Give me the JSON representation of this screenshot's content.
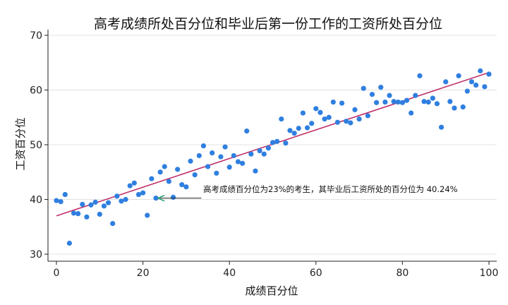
{
  "chart_data": {
    "type": "scatter",
    "title": "高考成绩所处百分位和毕业后第一份工作的工资所处百分位",
    "xlabel": "成绩百分位",
    "ylabel": "工资百分位",
    "xlim": [
      0,
      100
    ],
    "ylim": [
      30,
      70
    ],
    "xticks": [
      0,
      20,
      40,
      60,
      80,
      100
    ],
    "yticks": [
      30,
      40,
      50,
      60,
      70
    ],
    "grid": "horizontal",
    "point_color": "#2f7fe0",
    "line_color": "#c0306a",
    "points": [
      [
        0,
        39.8
      ],
      [
        1,
        39.6
      ],
      [
        2,
        40.9
      ],
      [
        3,
        32.0
      ],
      [
        4,
        37.5
      ],
      [
        5,
        37.4
      ],
      [
        6,
        39.1
      ],
      [
        7,
        36.8
      ],
      [
        8,
        39.0
      ],
      [
        9,
        39.5
      ],
      [
        10,
        37.3
      ],
      [
        11,
        38.8
      ],
      [
        12,
        39.4
      ],
      [
        13,
        35.6
      ],
      [
        14,
        40.6
      ],
      [
        15,
        39.7
      ],
      [
        16,
        40.0
      ],
      [
        17,
        42.5
      ],
      [
        18,
        43.0
      ],
      [
        19,
        40.9
      ],
      [
        20,
        41.2
      ],
      [
        21,
        37.1
      ],
      [
        22,
        43.8
      ],
      [
        23,
        40.24
      ],
      [
        24,
        45.0
      ],
      [
        25,
        46.0
      ],
      [
        26,
        43.3
      ],
      [
        27,
        40.4
      ],
      [
        28,
        45.5
      ],
      [
        29,
        42.7
      ],
      [
        30,
        42.3
      ],
      [
        31,
        47.0
      ],
      [
        32,
        44.5
      ],
      [
        33,
        48.0
      ],
      [
        34,
        49.8
      ],
      [
        35,
        46.0
      ],
      [
        36,
        48.5
      ],
      [
        37,
        44.8
      ],
      [
        38,
        47.8
      ],
      [
        39,
        49.6
      ],
      [
        40,
        45.9
      ],
      [
        41,
        48.0
      ],
      [
        42,
        46.9
      ],
      [
        43,
        46.6
      ],
      [
        44,
        52.5
      ],
      [
        45,
        48.3
      ],
      [
        46,
        45.2
      ],
      [
        47,
        48.9
      ],
      [
        48,
        48.3
      ],
      [
        49,
        49.4
      ],
      [
        50,
        50.4
      ],
      [
        51,
        50.6
      ],
      [
        52,
        54.7
      ],
      [
        53,
        50.3
      ],
      [
        54,
        52.6
      ],
      [
        55,
        52.1
      ],
      [
        56,
        53.0
      ],
      [
        57,
        55.8
      ],
      [
        58,
        53.1
      ],
      [
        59,
        53.9
      ],
      [
        60,
        56.6
      ],
      [
        61,
        55.9
      ],
      [
        62,
        54.7
      ],
      [
        63,
        55.0
      ],
      [
        64,
        57.8
      ],
      [
        65,
        54.1
      ],
      [
        66,
        57.6
      ],
      [
        67,
        54.3
      ],
      [
        68,
        54.0
      ],
      [
        69,
        56.4
      ],
      [
        70,
        54.7
      ],
      [
        71,
        60.3
      ],
      [
        72,
        55.3
      ],
      [
        73,
        59.2
      ],
      [
        74,
        57.7
      ],
      [
        75,
        60.5
      ],
      [
        76,
        57.8
      ],
      [
        77,
        59.0
      ],
      [
        78,
        57.9
      ],
      [
        79,
        57.8
      ],
      [
        80,
        57.7
      ],
      [
        81,
        58.1
      ],
      [
        82,
        55.8
      ],
      [
        83,
        59.0
      ],
      [
        84,
        62.6
      ],
      [
        85,
        57.9
      ],
      [
        86,
        57.8
      ],
      [
        87,
        58.5
      ],
      [
        88,
        57.5
      ],
      [
        89,
        53.2
      ],
      [
        90,
        61.5
      ],
      [
        91,
        57.9
      ],
      [
        92,
        56.7
      ],
      [
        93,
        62.6
      ],
      [
        94,
        56.9
      ],
      [
        95,
        59.8
      ],
      [
        96,
        61.5
      ],
      [
        97,
        60.9
      ],
      [
        98,
        63.5
      ],
      [
        99,
        60.6
      ],
      [
        100,
        62.9
      ]
    ],
    "fit_line": {
      "intercept": 37.0,
      "slope": 0.262
    },
    "annotation": {
      "text": "高考成绩百分位为23%的考生，其毕业后工资所处的百分位为 40.24%",
      "x": 23,
      "y": 40.24,
      "arrow_start_x": 33.5
    }
  }
}
